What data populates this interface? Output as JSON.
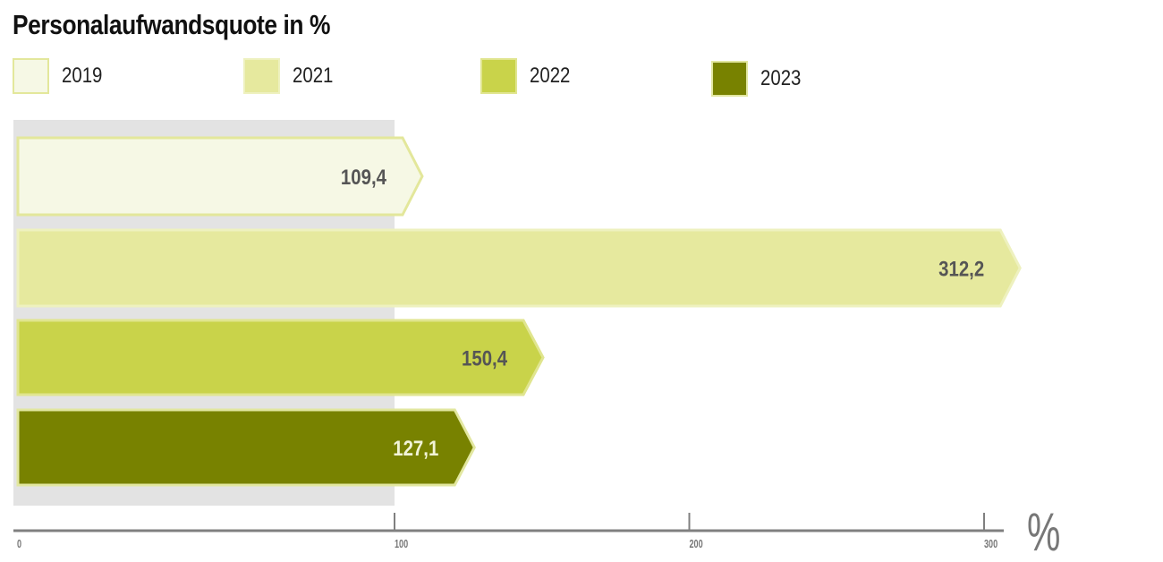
{
  "chart_data": {
    "type": "bar",
    "orientation": "horizontal",
    "title": "Personalaufwandsquote in %",
    "categories": [
      "2019",
      "2021",
      "2022",
      "2023"
    ],
    "values": [
      109.4,
      312.2,
      150.4,
      127.1
    ],
    "value_labels": [
      "109,4",
      "312,2",
      "150,4",
      "127,1"
    ],
    "colors": [
      "#f6f8e5",
      "#e6e99e",
      "#c9d34a",
      "#788200"
    ],
    "border_colors": [
      "#e3e79b",
      "#eef1bf",
      "#e0e58f",
      "#e2e7a0"
    ],
    "label_colors": [
      "#555555",
      "#555555",
      "#555555",
      "#f2f4d8"
    ],
    "xlim": [
      0,
      310
    ],
    "xticks": [
      0,
      100,
      200,
      300
    ],
    "xtick_labels": [
      "0",
      "100",
      "200",
      "300"
    ],
    "xlabel": "%",
    "legend": [
      "2019",
      "2021",
      "2022",
      "2023"
    ],
    "legend_position": "top"
  }
}
